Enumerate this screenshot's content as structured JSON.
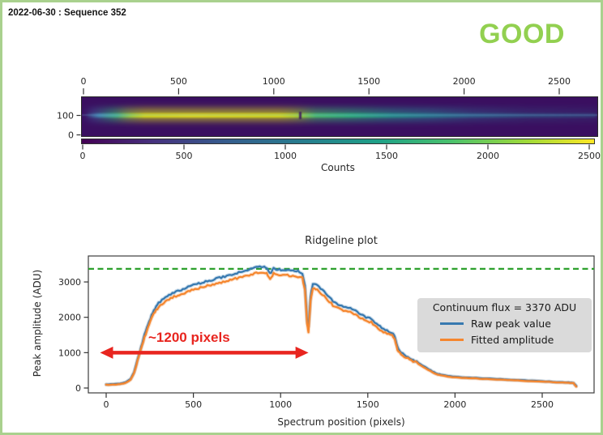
{
  "frame": {
    "border_color": "#a9d18e",
    "background": "#ffffff"
  },
  "header": {
    "sequence_label": "2022-06-30 : Sequence 352",
    "status_label": "GOOD",
    "status_color": "#92d050"
  },
  "chart_data": [
    {
      "type": "heatmap",
      "name": "spectral-trace-image",
      "xlabel": "Counts",
      "x_ticks_top": [
        0,
        500,
        1000,
        1500,
        2000,
        2500
      ],
      "y_ticks": [
        100,
        0
      ],
      "colorbar_ticks": [
        0,
        500,
        1000,
        1500,
        2000,
        2500
      ],
      "xlim": [
        0,
        2700
      ],
      "ylim": [
        0,
        200
      ],
      "colormap": "viridis",
      "description": "2D spectral trace on dark purple background; bright horizontal ridge near row 100, brightest (yellow) from x=250 to x=1100 with a small break near x=1130, fading through green to faint blue toward x=2700"
    },
    {
      "type": "line",
      "title": "Ridgeline plot",
      "xlabel": "Spectrum position (pixels)",
      "ylabel": "Peak amplitude (ADU)",
      "x_ticks": [
        0,
        500,
        1000,
        1500,
        2000,
        2500
      ],
      "y_ticks": [
        0,
        1000,
        2000,
        3000
      ],
      "xlim": [
        -100,
        2800
      ],
      "ylim": [
        -130,
        3700
      ],
      "continuum_line": {
        "value": 3370,
        "color": "#2ca02c",
        "style": "dashed"
      },
      "legend": {
        "title": "Continuum flux = 3370 ADU",
        "entries": [
          {
            "label": "Raw peak value",
            "color": "#3779b0"
          },
          {
            "label": "Fitted amplitude",
            "color": "#f5862e"
          }
        ]
      },
      "annotation": {
        "text": "~1200 pixels",
        "color": "#e8251f",
        "x_start": -35,
        "x_end": 1160,
        "y": 1000
      },
      "x": [
        0,
        40,
        80,
        110,
        140,
        160,
        180,
        200,
        220,
        240,
        260,
        280,
        300,
        330,
        360,
        390,
        420,
        450,
        480,
        510,
        540,
        570,
        600,
        630,
        660,
        690,
        720,
        750,
        780,
        810,
        840,
        870,
        900,
        920,
        940,
        960,
        985,
        1010,
        1040,
        1070,
        1100,
        1125,
        1140,
        1152,
        1160,
        1172,
        1185,
        1210,
        1240,
        1270,
        1300,
        1330,
        1360,
        1400,
        1430,
        1460,
        1490,
        1520,
        1550,
        1580,
        1610,
        1640,
        1655,
        1670,
        1690,
        1720,
        1750,
        1780,
        1810,
        1840,
        1870,
        1900,
        1930,
        1960,
        2000,
        2060,
        2120,
        2180,
        2240,
        2300,
        2360,
        2420,
        2480,
        2540,
        2600,
        2650,
        2680,
        2695
      ],
      "series": [
        {
          "name": "Raw peak value",
          "color": "#3779b0",
          "values": [
            105,
            110,
            130,
            160,
            260,
            450,
            800,
            1150,
            1500,
            1800,
            2050,
            2250,
            2400,
            2520,
            2620,
            2700,
            2760,
            2820,
            2880,
            2930,
            2970,
            3010,
            3050,
            3090,
            3130,
            3170,
            3210,
            3250,
            3290,
            3330,
            3370,
            3420,
            3430,
            3400,
            3230,
            3390,
            3340,
            3350,
            3340,
            3320,
            3300,
            3250,
            2900,
            1900,
            1750,
            2600,
            2950,
            2900,
            2770,
            2620,
            2450,
            2370,
            2300,
            2270,
            2180,
            2080,
            2000,
            1950,
            1800,
            1700,
            1620,
            1560,
            1450,
            1150,
            1000,
            900,
            820,
            750,
            650,
            560,
            470,
            400,
            370,
            340,
            320,
            300,
            285,
            270,
            255,
            240,
            225,
            210,
            195,
            180,
            165,
            155,
            145,
            60
          ]
        },
        {
          "name": "Fitted amplitude",
          "color": "#f5862e",
          "values": [
            88,
            93,
            112,
            140,
            235,
            420,
            760,
            1095,
            1430,
            1720,
            1960,
            2150,
            2295,
            2410,
            2505,
            2580,
            2640,
            2695,
            2755,
            2800,
            2840,
            2875,
            2915,
            2955,
            2990,
            3030,
            3065,
            3105,
            3140,
            3180,
            3220,
            3265,
            3270,
            3245,
            3080,
            3235,
            3190,
            3200,
            3190,
            3170,
            3150,
            3105,
            2770,
            1790,
            1580,
            2470,
            2820,
            2770,
            2645,
            2500,
            2340,
            2265,
            2195,
            2170,
            2080,
            1985,
            1910,
            1860,
            1715,
            1620,
            1545,
            1485,
            1380,
            1090,
            950,
            855,
            780,
            712,
            617,
            530,
            445,
            378,
            350,
            321,
            302,
            283,
            269,
            255,
            241,
            227,
            213,
            198,
            184,
            170,
            156,
            146,
            137,
            40
          ]
        }
      ]
    }
  ]
}
